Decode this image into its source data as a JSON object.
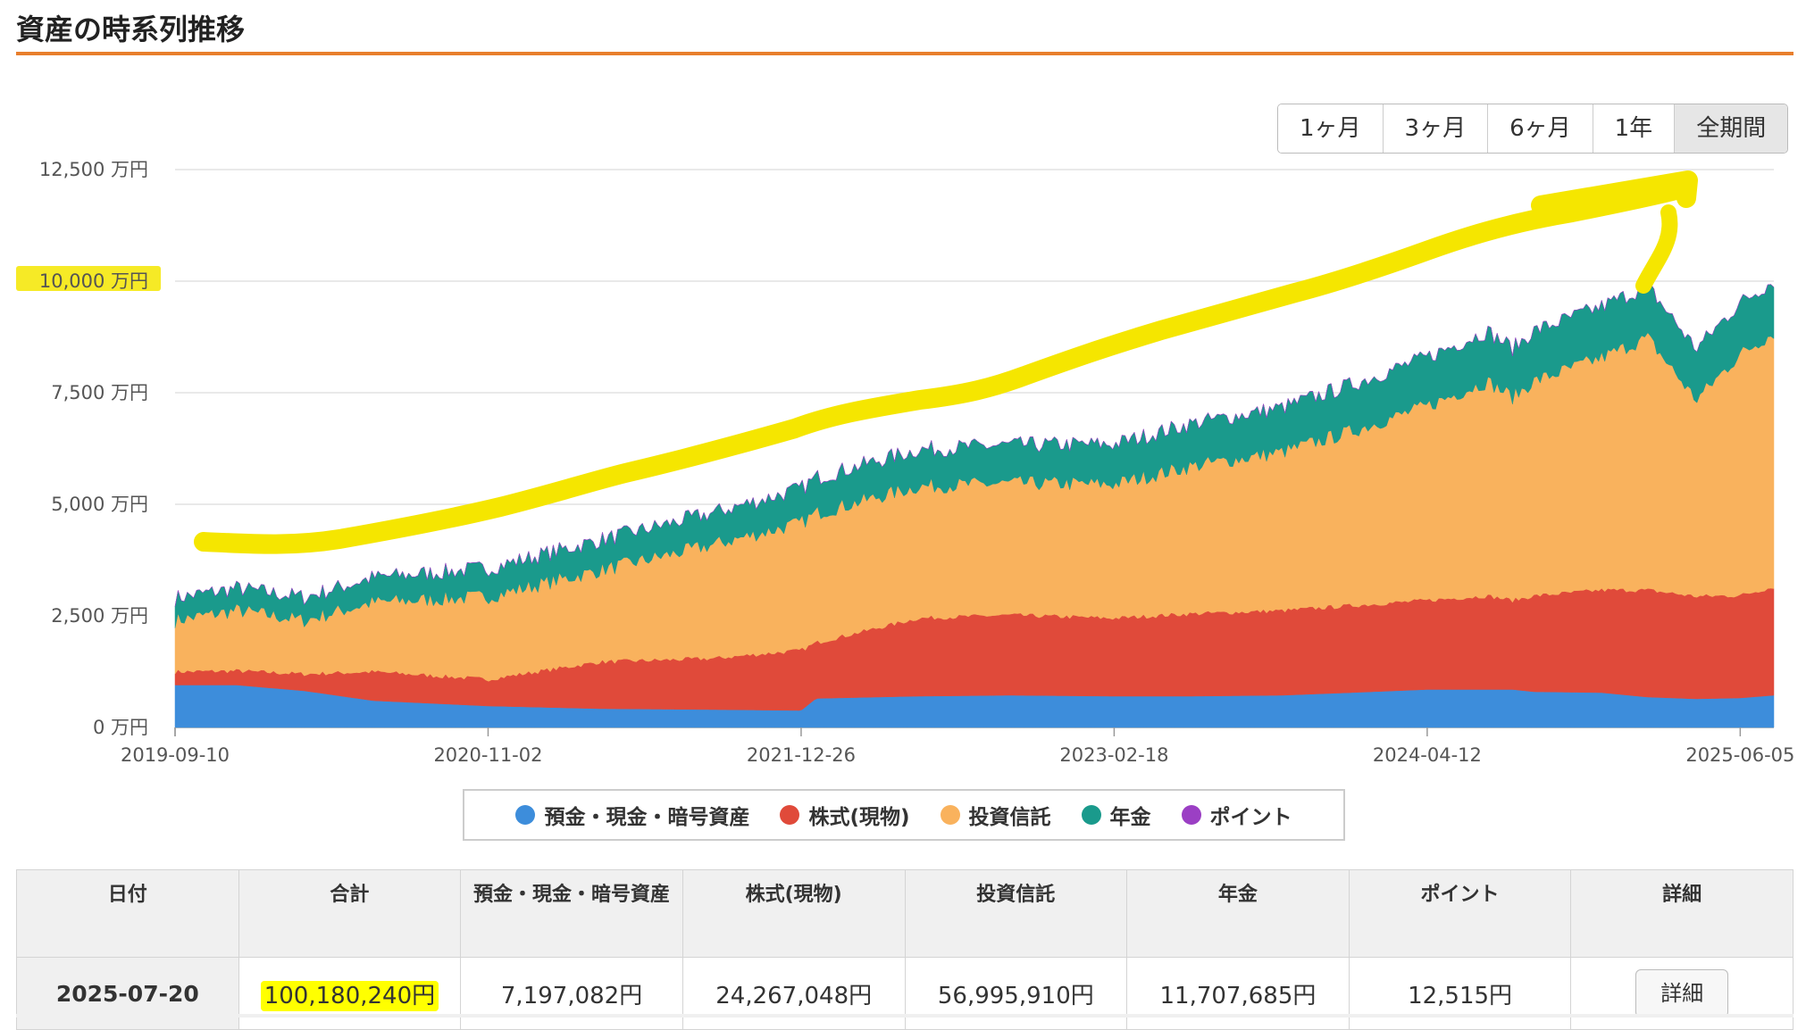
{
  "page": {
    "title": "資産の時系列推移"
  },
  "range_buttons": [
    {
      "label": "1ヶ月",
      "active": false
    },
    {
      "label": "3ヶ月",
      "active": false
    },
    {
      "label": "6ヶ月",
      "active": false
    },
    {
      "label": "1年",
      "active": false
    },
    {
      "label": "全期間",
      "active": true
    }
  ],
  "chart_data": {
    "type": "area",
    "stacked": true,
    "x": [
      "2019-09-10",
      "2019-12-01",
      "2020-03-01",
      "2020-06-01",
      "2020-11-02",
      "2021-04-01",
      "2021-09-01",
      "2021-12-26",
      "2022-01-15",
      "2022-06-01",
      "2022-10-01",
      "2023-02-18",
      "2023-06-01",
      "2023-10-01",
      "2024-01-01",
      "2024-04-12",
      "2024-07-01",
      "2024-08-05",
      "2024-09-01",
      "2024-12-01",
      "2025-02-01",
      "2025-04-07",
      "2025-06-05",
      "2025-07-20"
    ],
    "x_ticks": [
      "2019-09-10",
      "2020-11-02",
      "2021-12-26",
      "2023-02-18",
      "2024-04-12",
      "2025-06-05"
    ],
    "y_ticks": [
      "0 万円",
      "2,500 万円",
      "5,000 万円",
      "7,500 万円",
      "10,000 万円",
      "12,500 万円"
    ],
    "ylim": [
      0,
      12500
    ],
    "y_unit": "万円",
    "grid": true,
    "legend_position": "bottom",
    "series": [
      {
        "name": "預金・現金・暗号資産",
        "color": "#3d8ddb",
        "values": [
          950,
          950,
          820,
          600,
          480,
          420,
          400,
          380,
          650,
          700,
          720,
          700,
          700,
          720,
          780,
          850,
          850,
          850,
          800,
          780,
          680,
          640,
          660,
          720
        ]
      },
      {
        "name": "株式(現物)",
        "color": "#e04a3a",
        "values": [
          300,
          320,
          380,
          650,
          600,
          1050,
          1150,
          1350,
          1250,
          1750,
          1800,
          1750,
          1850,
          1900,
          1950,
          2000,
          2100,
          2000,
          2150,
          2300,
          2400,
          2300,
          2300,
          2430
        ]
      },
      {
        "name": "投資信託",
        "color": "#f9b25d",
        "values": [
          1150,
          1350,
          1200,
          1550,
          1850,
          2050,
          2550,
          2850,
          2900,
          2950,
          2950,
          3000,
          3300,
          3550,
          3900,
          4350,
          4800,
          4550,
          4800,
          5200,
          5650,
          4400,
          5400,
          5700
        ]
      },
      {
        "name": "年金",
        "color": "#1a9a8c",
        "values": [
          500,
          500,
          520,
          560,
          640,
          680,
          720,
          770,
          800,
          830,
          860,
          900,
          960,
          1000,
          1050,
          1100,
          1130,
          1100,
          1130,
          1150,
          1160,
          1150,
          1160,
          1170
        ]
      },
      {
        "name": "ポイント",
        "color": "#9b3fc4",
        "values": [
          1,
          1,
          1,
          1,
          1,
          1,
          1,
          1,
          1,
          1,
          1,
          1,
          1,
          1,
          1,
          1,
          1,
          1,
          1,
          1,
          1,
          1,
          1,
          1
        ]
      }
    ]
  },
  "table": {
    "headers": [
      "日付",
      "合計",
      "預金・現金・暗号資産",
      "株式(現物)",
      "投資信託",
      "年金",
      "ポイント",
      "詳細"
    ],
    "row": {
      "date": "2025-07-20",
      "total": "100,180,240円",
      "cash": "7,197,082円",
      "stocks": "24,267,048円",
      "funds": "56,995,910円",
      "pension": "11,707,685円",
      "points": "12,515円",
      "detail_label": "詳細"
    }
  }
}
